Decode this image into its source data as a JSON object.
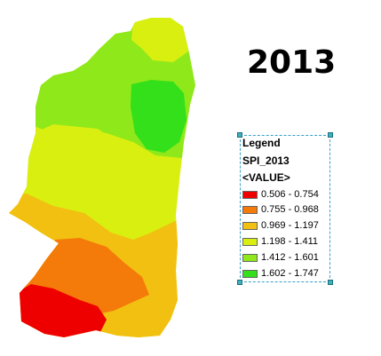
{
  "title": "2013",
  "legend": {
    "heading": "Legend",
    "layer": "SPI_2013",
    "field": "<VALUE>",
    "classes": [
      {
        "label": "0.506 - 0.754",
        "color": "#ef0000"
      },
      {
        "label": "0.755 - 0.968",
        "color": "#f47a0a"
      },
      {
        "label": "0.969 - 1.197",
        "color": "#f2c010"
      },
      {
        "label": "1.198 - 1.411",
        "color": "#d8ef10"
      },
      {
        "label": "1.412 - 1.601",
        "color": "#8ee81a"
      },
      {
        "label": "1.602 - 1.747",
        "color": "#33e019"
      }
    ]
  }
}
